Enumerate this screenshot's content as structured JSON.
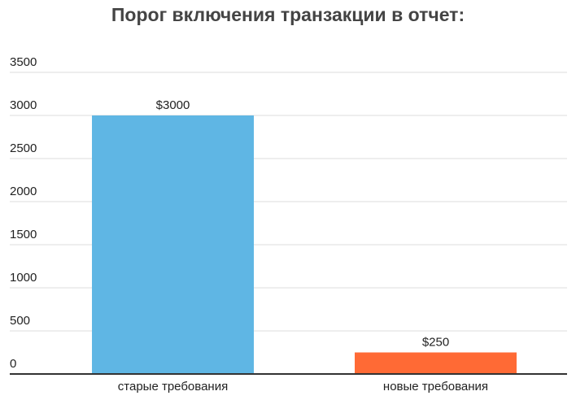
{
  "chart_data": {
    "type": "bar",
    "title": "Порог включения транзакции в отчет:",
    "categories": [
      "старые требования",
      "новые требования"
    ],
    "values": [
      3000,
      250
    ],
    "value_labels": [
      "$3000",
      "$250"
    ],
    "colors": [
      "#5fb6e4",
      "#ff6a35"
    ],
    "ylim": [
      0,
      3500
    ],
    "yticks": [
      0,
      500,
      1000,
      1500,
      2000,
      2500,
      3000,
      3500
    ],
    "grid": true
  }
}
